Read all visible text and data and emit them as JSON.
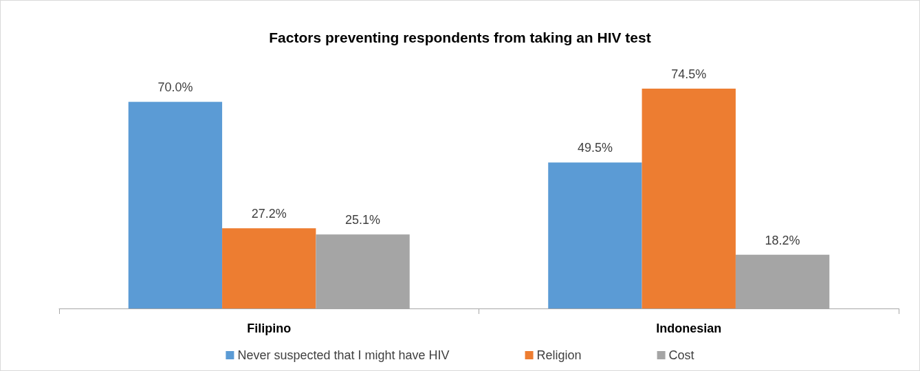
{
  "chart_data": {
    "type": "bar",
    "title": "Factors preventing respondents from taking an HIV test",
    "categories": [
      "Filipino",
      "Indonesian"
    ],
    "series": [
      {
        "name": "Never suspected that I might have HIV",
        "color": "#5b9bd5",
        "values": [
          70.0,
          49.5
        ],
        "value_labels": [
          "70.0%",
          "49.5%"
        ]
      },
      {
        "name": "Religion",
        "color": "#ed7d31",
        "values": [
          27.2,
          74.5
        ],
        "value_labels": [
          "27.2%",
          "74.5%"
        ]
      },
      {
        "name": "Cost",
        "color": "#a5a5a5",
        "values": [
          25.1,
          18.2
        ],
        "value_labels": [
          "25.1%",
          "18.2%"
        ]
      }
    ],
    "tick_labels": "x",
    "grid": false,
    "legend": "bottom"
  }
}
